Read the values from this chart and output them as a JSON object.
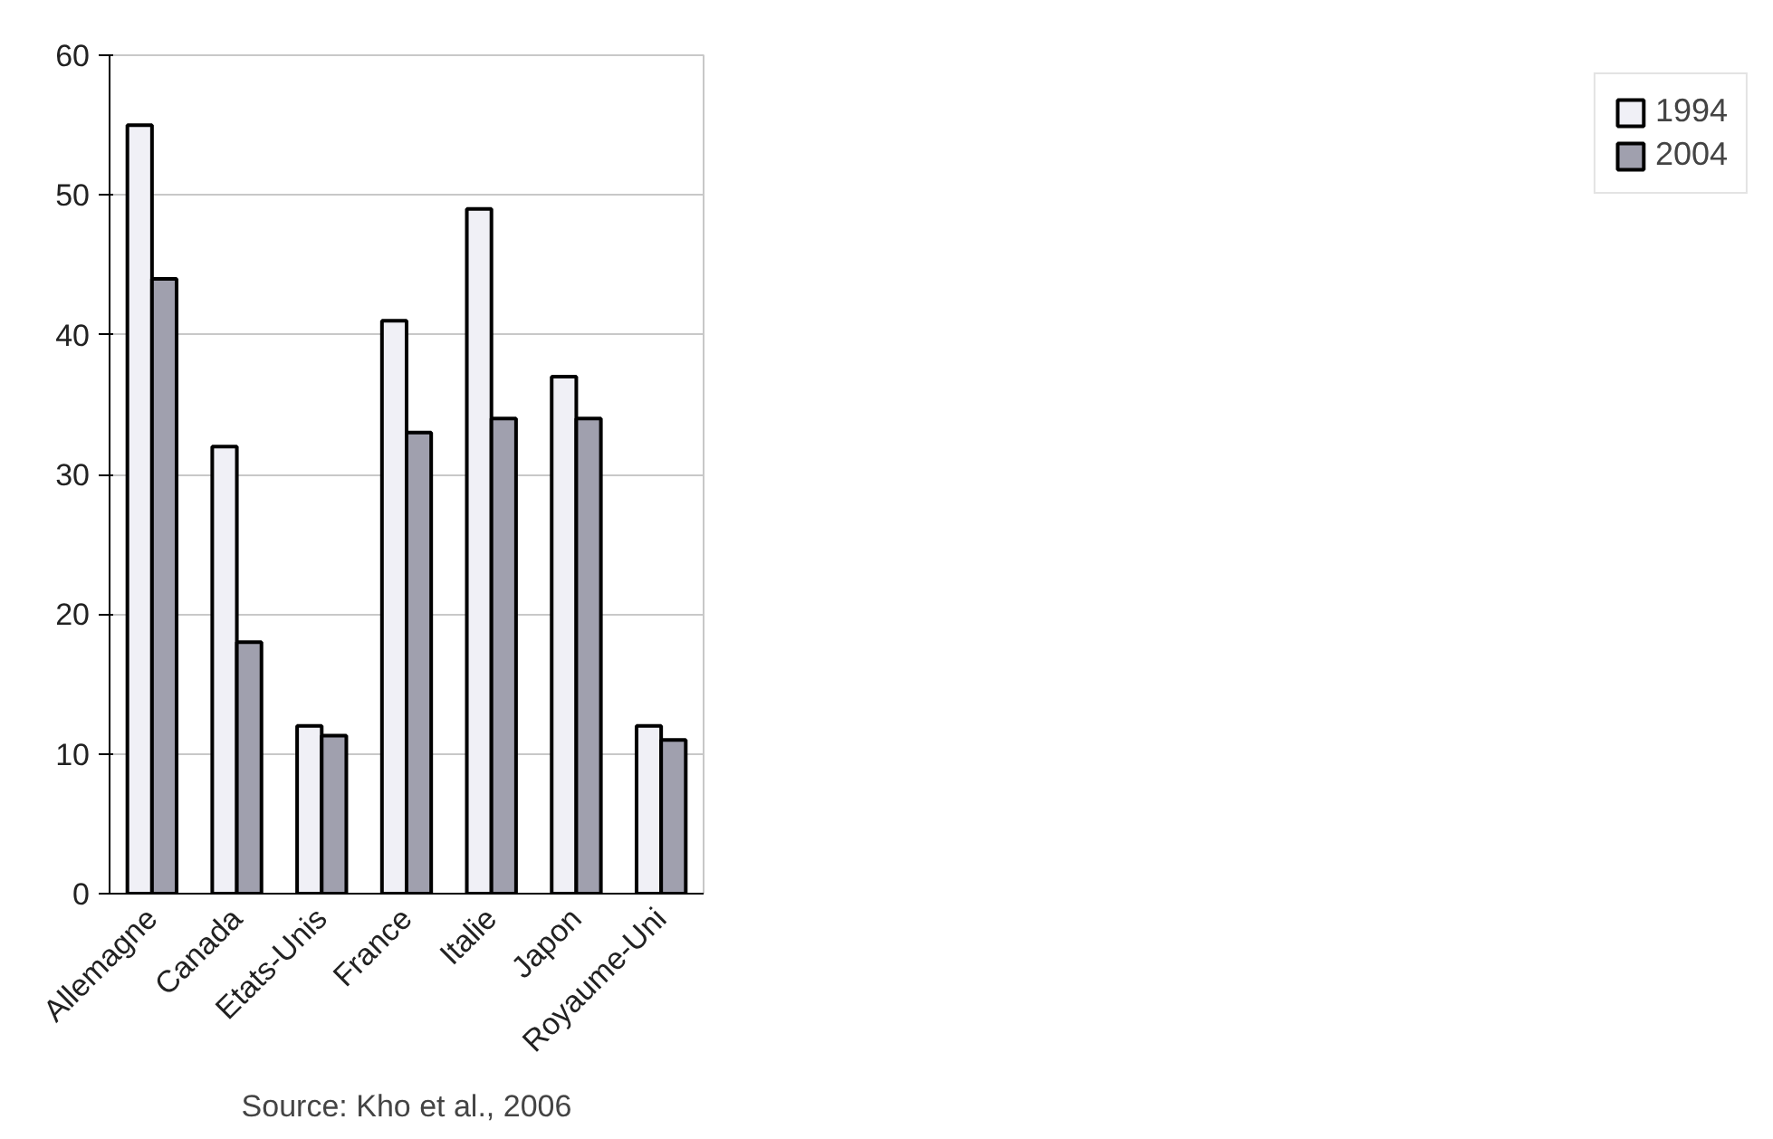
{
  "chart_data": {
    "type": "bar",
    "categories": [
      "Allemagne",
      "Canada",
      "Etats-Unis",
      "France",
      "Italie",
      "Japon",
      "Royaume-Uni"
    ],
    "series": [
      {
        "name": "1994",
        "color": "#f0f0f6",
        "values": [
          55,
          32,
          12,
          41,
          49,
          37,
          12
        ]
      },
      {
        "name": "2004",
        "color": "#a0a0ae",
        "values": [
          44,
          18,
          11.3,
          33,
          34,
          34,
          11
        ]
      }
    ],
    "ylim": [
      0,
      60
    ],
    "yticks": [
      0,
      10,
      20,
      30,
      40,
      50,
      60
    ],
    "grid": "y",
    "legend": "right",
    "annotations": [
      "Source: Kho et al., 2006"
    ]
  }
}
